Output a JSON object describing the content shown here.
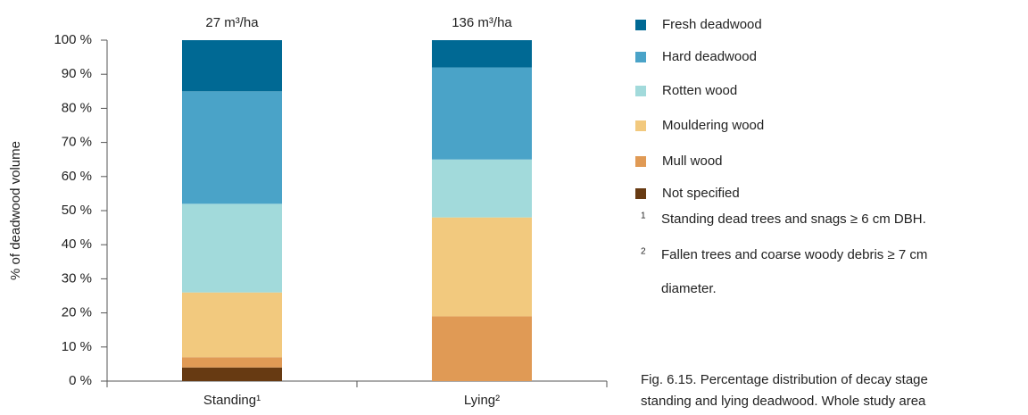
{
  "chart_data": {
    "type": "stacked_bar",
    "y_label": "% of deadwood volume",
    "categories": [
      "Standing¹",
      "Lying²"
    ],
    "annotations": [
      "27 m³/ha",
      "136 m³/ha"
    ],
    "series": [
      {
        "name": "Not specified",
        "color": "#673a12",
        "values": [
          4,
          0
        ]
      },
      {
        "name": "Mull wood",
        "color": "#e09a55",
        "values": [
          3,
          19
        ]
      },
      {
        "name": "Mouldering wood",
        "color": "#f2c97e",
        "values": [
          19,
          29
        ]
      },
      {
        "name": "Rotten wood",
        "color": "#a2dadb",
        "values": [
          26,
          17
        ]
      },
      {
        "name": "Hard deadwood",
        "color": "#4aa3c8",
        "values": [
          33,
          27
        ]
      },
      {
        "name": "Fresh deadwood",
        "color": "#006994",
        "values": [
          15,
          8
        ]
      }
    ],
    "ylim": [
      0,
      100
    ],
    "yticks": [
      {
        "value": 0,
        "label": "0 %"
      },
      {
        "value": 10,
        "label": "10 %"
      },
      {
        "value": 20,
        "label": "20 %"
      },
      {
        "value": 30,
        "label": "30 %"
      },
      {
        "value": 40,
        "label": "40 %"
      },
      {
        "value": 50,
        "label": "50 %"
      },
      {
        "value": 60,
        "label": "60 %"
      },
      {
        "value": 70,
        "label": "70 %"
      },
      {
        "value": 80,
        "label": "80 %"
      },
      {
        "value": 90,
        "label": "90 %"
      },
      {
        "value": 100,
        "label": "100 %"
      }
    ],
    "legend": "right",
    "footnotes": [
      {
        "mark": "1",
        "text": "Standing dead trees and snags ≥ 6 cm DBH."
      },
      {
        "mark": "2",
        "text": "Fallen trees and coarse woody debris ≥ 7 cm"
      }
    ],
    "footnote_continuation": "diameter.",
    "caption": [
      "Fig. 6.15. Percentage distribution of decay stage",
      "standing and lying deadwood. Whole study area"
    ]
  }
}
